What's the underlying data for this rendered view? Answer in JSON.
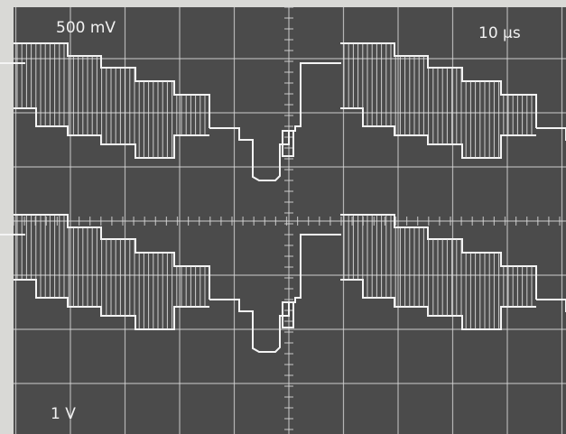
{
  "screen": {
    "top_trace_label": "500 mV",
    "timebase_label": "10 µs",
    "bottom_trace_label": "1 V"
  }
}
